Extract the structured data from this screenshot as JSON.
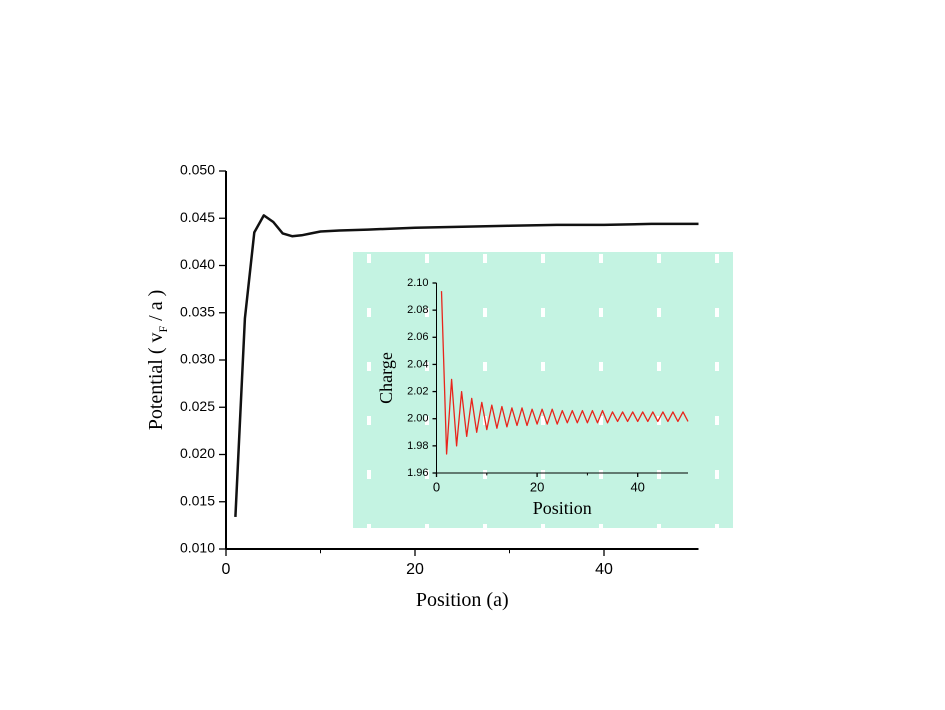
{
  "chart_data": [
    {
      "type": "line",
      "xlabel": "Position (a)",
      "ylabel": [
        "Potential ( v",
        "F",
        " / a )"
      ],
      "x": [
        1,
        2,
        3,
        4,
        5,
        6,
        7,
        8,
        9,
        10,
        12,
        15,
        20,
        25,
        30,
        35,
        40,
        45,
        50
      ],
      "values": [
        0.0134,
        0.0344,
        0.0435,
        0.0453,
        0.0446,
        0.0434,
        0.0431,
        0.0432,
        0.0434,
        0.0436,
        0.0437,
        0.0438,
        0.044,
        0.0441,
        0.0442,
        0.0443,
        0.0443,
        0.0444,
        0.0444
      ],
      "color": "#111111",
      "xlim": [
        0,
        50
      ],
      "xticks": [
        0,
        20,
        40
      ],
      "ylim": [
        0.01,
        0.05
      ],
      "yticks": [
        {
          "value": 0.01,
          "label": "0.010"
        },
        0.015,
        {
          "value": 0.02,
          "label": "0.020"
        },
        0.025,
        {
          "value": 0.03,
          "label": "0.030"
        },
        0.035,
        {
          "value": 0.04,
          "label": "0.040"
        },
        0.045,
        {
          "value": 0.05,
          "label": "0.050"
        }
      ]
    },
    {
      "type": "line",
      "xlabel": "Position",
      "ylabel": [
        "Charge"
      ],
      "x": [
        1,
        2,
        3,
        4,
        5,
        6,
        7,
        8,
        9,
        10,
        11,
        12,
        13,
        14,
        15,
        16,
        17,
        18,
        19,
        20,
        21,
        22,
        23,
        24,
        25,
        26,
        27,
        28,
        29,
        30,
        31,
        32,
        33,
        34,
        35,
        36,
        37,
        38,
        39,
        40,
        41,
        42,
        43,
        44,
        45,
        46,
        47,
        48,
        49,
        50
      ],
      "values": [
        2.094,
        1.974,
        2.029,
        1.98,
        2.02,
        1.987,
        2.015,
        1.99,
        2.012,
        1.992,
        2.01,
        1.993,
        2.009,
        1.994,
        2.008,
        1.995,
        2.008,
        1.995,
        2.007,
        1.996,
        2.007,
        1.996,
        2.007,
        1.996,
        2.006,
        1.997,
        2.006,
        1.997,
        2.006,
        1.997,
        2.006,
        1.997,
        2.006,
        1.997,
        2.005,
        1.998,
        2.005,
        1.998,
        2.005,
        1.998,
        2.005,
        1.998,
        2.005,
        1.998,
        2.005,
        1.998,
        2.005,
        1.998,
        2.005,
        1.998
      ],
      "color": "#e8251c",
      "xlim": [
        0,
        50
      ],
      "xticks": [
        0,
        20,
        40
      ],
      "ylim": [
        1.96,
        2.1
      ],
      "yticks": [
        1.96,
        1.98,
        {
          "value": 2.0,
          "label": "2.00"
        },
        2.02,
        2.04,
        2.06,
        2.08,
        {
          "value": 2.1,
          "label": "2.10"
        }
      ]
    }
  ]
}
